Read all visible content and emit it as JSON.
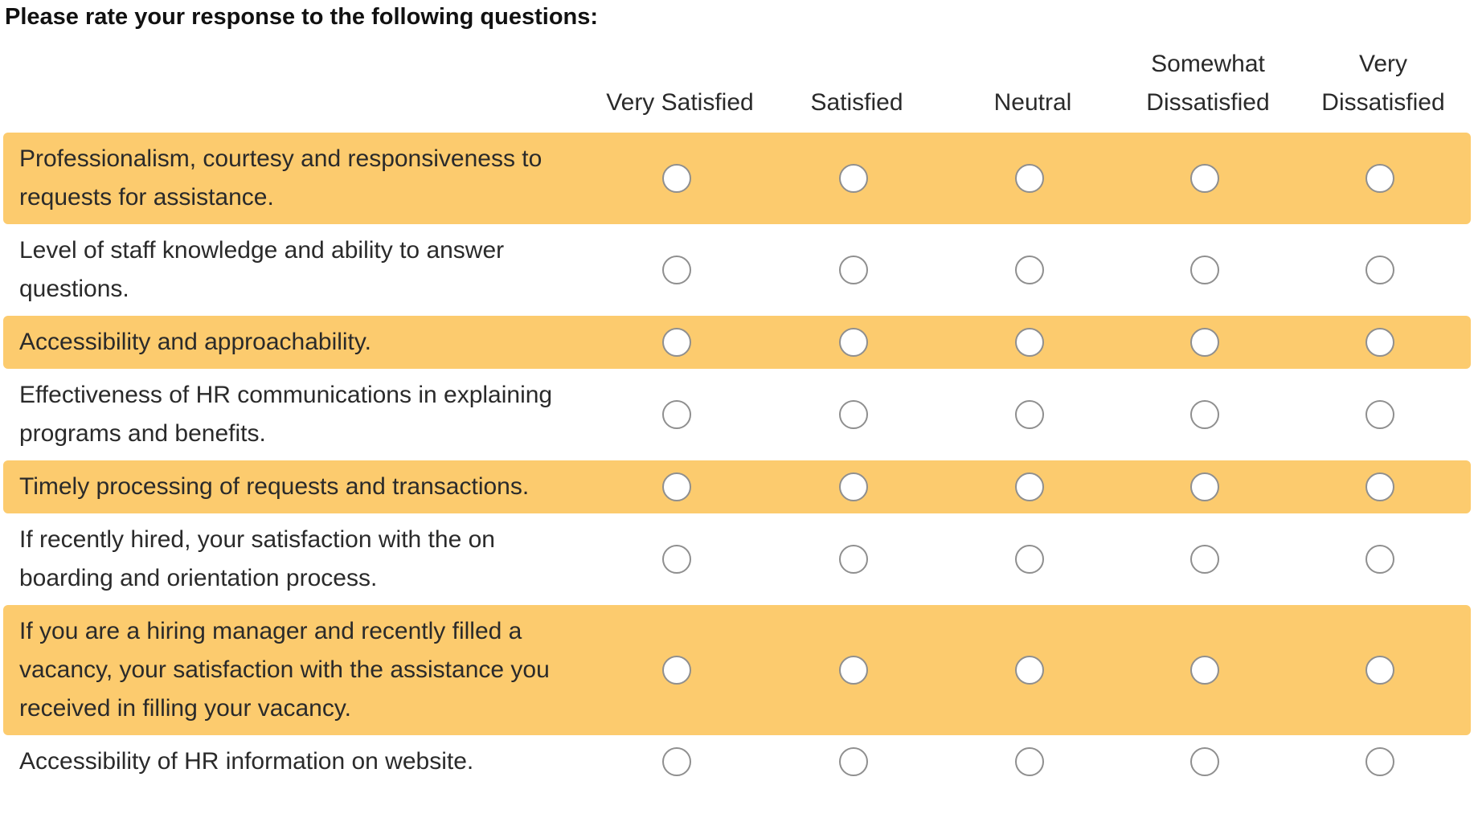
{
  "prompt": "Please rate your response to the following questions:",
  "columns": [
    "Very Satisfied",
    "Satisfied",
    "Neutral",
    "Somewhat\nDissatisfied",
    "Very\nDissatisfied"
  ],
  "questions": [
    {
      "label": "Professionalism, courtesy and responsiveness to requests for assistance.",
      "highlight": true,
      "selected": null
    },
    {
      "label": "Level of staff knowledge and ability to answer questions.",
      "highlight": false,
      "selected": null
    },
    {
      "label": "Accessibility and approachability.",
      "highlight": true,
      "selected": null
    },
    {
      "label": "Effectiveness of HR communications in explaining programs and benefits.",
      "highlight": false,
      "selected": null
    },
    {
      "label": "Timely processing of requests and transactions.",
      "highlight": true,
      "selected": null
    },
    {
      "label": "If recently hired, your satisfaction with the on boarding and orientation process.",
      "highlight": false,
      "selected": null
    },
    {
      "label": "If you are a hiring manager and recently filled a vacancy, your satisfaction with the assistance you received in filling your vacancy.",
      "highlight": true,
      "selected": null
    },
    {
      "label": "Accessibility of HR information on website.",
      "highlight": false,
      "selected": null
    }
  ],
  "colors": {
    "highlight_row": "#fccb6e",
    "radio_border": "#8f8f8f",
    "text": "#2a2a2a"
  }
}
